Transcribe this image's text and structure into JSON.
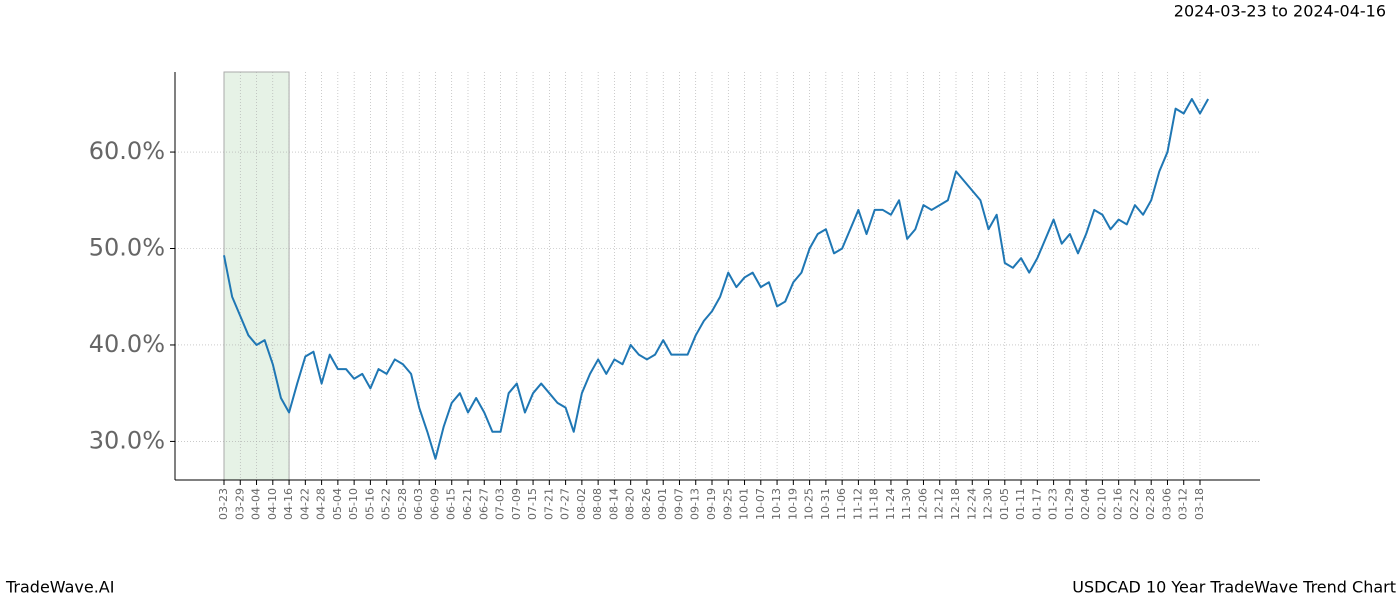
{
  "chart_data": {
    "type": "line",
    "subtitle": "2024-03-23 to 2024-04-16",
    "footer_left": "TradeWave.AI",
    "footer_right": "USDCAD 10 Year TradeWave Trend Chart",
    "categories": [
      "03-23",
      null,
      "03-29",
      null,
      "04-04",
      null,
      "04-10",
      null,
      "04-16",
      null,
      "04-22",
      null,
      "04-28",
      null,
      "05-04",
      null,
      "05-10",
      null,
      "05-16",
      null,
      "05-22",
      null,
      "05-28",
      null,
      "06-03",
      null,
      "06-09",
      null,
      "06-15",
      null,
      "06-21",
      null,
      "06-27",
      null,
      "07-03",
      null,
      "07-09",
      null,
      "07-15",
      null,
      "07-21",
      null,
      "07-27",
      null,
      "08-02",
      null,
      "08-08",
      null,
      "08-14",
      null,
      "08-20",
      null,
      "08-26",
      null,
      "09-01",
      null,
      "09-07",
      null,
      "09-13",
      null,
      "09-19",
      null,
      "09-25",
      null,
      "10-01",
      null,
      "10-07",
      null,
      "10-13",
      null,
      "10-19",
      null,
      "10-25",
      null,
      "10-31",
      null,
      "11-06",
      null,
      "11-12",
      null,
      "11-18",
      null,
      "11-24",
      null,
      "11-30",
      null,
      "12-06",
      null,
      "12-12",
      null,
      "12-18",
      null,
      "12-24",
      null,
      "12-30",
      null,
      "01-05",
      null,
      "01-11",
      null,
      "01-17",
      null,
      "01-23",
      null,
      "01-29",
      null,
      "02-04",
      null,
      "02-10",
      null,
      "02-16",
      null,
      "02-22",
      null,
      "02-28",
      null,
      "03-06",
      null,
      "03-12",
      null,
      "03-18",
      null
    ],
    "series": [
      {
        "name": "USDCAD",
        "color": "#1f77b4",
        "values": [
          49.3,
          45,
          43,
          41,
          40,
          40.5,
          38,
          34.5,
          33,
          36,
          38.8,
          39.3,
          36,
          39,
          37.5,
          37.5,
          36.5,
          37,
          35.5,
          37.5,
          37,
          38.5,
          38,
          37,
          33.5,
          31,
          28.2,
          31.5,
          34,
          35,
          33,
          34.5,
          33,
          31,
          31,
          35,
          36,
          33,
          35,
          36,
          35,
          34,
          33.5,
          31,
          35,
          37,
          38.5,
          37,
          38.5,
          38,
          40,
          39,
          38.5,
          39,
          40.5,
          39,
          39,
          39,
          41,
          42.5,
          43.5,
          45,
          47.5,
          46,
          47,
          47.5,
          46,
          46.5,
          44,
          44.5,
          46.5,
          47.5,
          50,
          51.5,
          52,
          49.5,
          50,
          52,
          54,
          51.5,
          54,
          54,
          53.5,
          55,
          51,
          52,
          54.5,
          54,
          54.5,
          55,
          58,
          57,
          56,
          55,
          52,
          53.5,
          48.5,
          48,
          49,
          47.5,
          49,
          51,
          53,
          50.5,
          51.5,
          49.5,
          51.5,
          54,
          53.5,
          52,
          53,
          52.5,
          54.5,
          53.5,
          55,
          58,
          60,
          64.5,
          64,
          65.5,
          64,
          65.5
        ]
      }
    ],
    "shade": [
      "03-23",
      "04-16"
    ],
    "shade_color": "#e6f2e6",
    "ylim": [
      26,
      68.3
    ],
    "yticks": [
      {
        "value": 30,
        "label": "30.0%"
      },
      {
        "value": 40,
        "label": "40.0%"
      },
      {
        "value": 50,
        "label": "50.0%"
      },
      {
        "value": 60,
        "label": "60.0%"
      }
    ],
    "grid": true
  }
}
